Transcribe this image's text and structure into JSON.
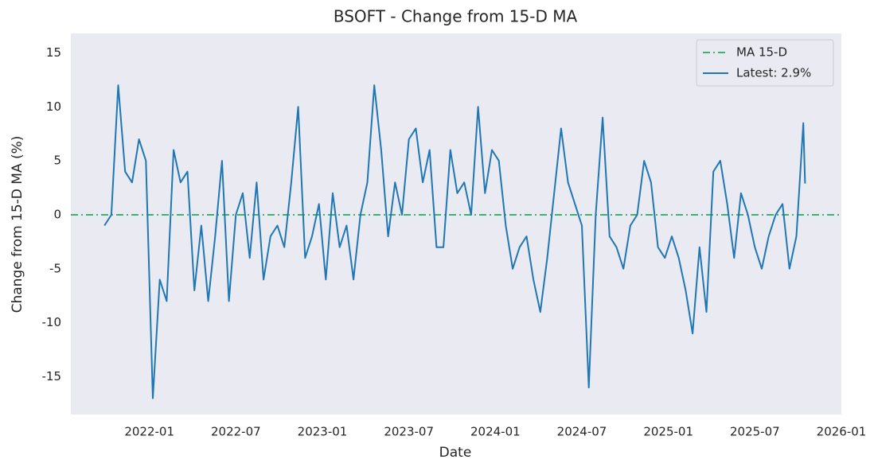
{
  "chart_data": {
    "type": "line",
    "title": "BSOFT - Change from 15-D MA",
    "xlabel": "Date",
    "ylabel": "Change from 15-D MA (%)",
    "x": [
      2021.74,
      2021.78,
      2021.82,
      2021.86,
      2021.9,
      2021.94,
      2021.98,
      2022.02,
      2022.06,
      2022.1,
      2022.14,
      2022.18,
      2022.22,
      2022.26,
      2022.3,
      2022.34,
      2022.38,
      2022.42,
      2022.46,
      2022.5,
      2022.54,
      2022.58,
      2022.62,
      2022.66,
      2022.7,
      2022.74,
      2022.78,
      2022.82,
      2022.86,
      2022.9,
      2022.94,
      2022.98,
      2023.02,
      2023.06,
      2023.1,
      2023.14,
      2023.18,
      2023.22,
      2023.26,
      2023.3,
      2023.34,
      2023.38,
      2023.42,
      2023.46,
      2023.5,
      2023.54,
      2023.58,
      2023.62,
      2023.66,
      2023.7,
      2023.74,
      2023.78,
      2023.82,
      2023.86,
      2023.9,
      2023.94,
      2023.98,
      2024.02,
      2024.06,
      2024.1,
      2024.14,
      2024.18,
      2024.22,
      2024.26,
      2024.3,
      2024.34,
      2024.38,
      2024.42,
      2024.46,
      2024.5,
      2024.54,
      2024.58,
      2024.62,
      2024.66,
      2024.7,
      2024.74,
      2024.78,
      2024.82,
      2024.86,
      2024.9,
      2024.94,
      2024.98,
      2025.02,
      2025.06,
      2025.1,
      2025.14,
      2025.18,
      2025.22,
      2025.26,
      2025.3,
      2025.34,
      2025.38,
      2025.42,
      2025.46,
      2025.5,
      2025.54,
      2025.58,
      2025.62,
      2025.66,
      2025.7,
      2025.74,
      2025.78,
      2025.79
    ],
    "series": [
      {
        "name": "Latest: 2.9%",
        "color": "#1f77b4",
        "values": [
          -1,
          0,
          12,
          4,
          3,
          7,
          5,
          -17,
          -6,
          -8,
          6,
          3,
          4,
          -7,
          -1,
          -8,
          -2,
          5,
          -8,
          0,
          2,
          -4,
          3,
          -6,
          -2,
          -1,
          -3,
          3,
          10,
          -4,
          -2,
          1,
          -6,
          2,
          -3,
          -1,
          -6,
          0,
          3,
          12,
          6,
          -2,
          3,
          0,
          7,
          8,
          3,
          6,
          -3,
          -3,
          6,
          2,
          3,
          0,
          10,
          2,
          6,
          5,
          -1,
          -5,
          -3,
          -2,
          -6,
          -9,
          -4,
          2,
          8,
          3,
          1,
          -1,
          -16,
          0,
          9,
          -2,
          -3,
          -5,
          -1,
          0,
          5,
          3,
          -3,
          -4,
          -2,
          -4,
          -7,
          -11,
          -3,
          -9,
          4,
          5,
          1,
          -4,
          2,
          0,
          -3,
          -5,
          -2,
          0,
          1,
          -5,
          -2,
          8.5,
          2.9
        ]
      }
    ],
    "hline": {
      "name": "MA 15-D",
      "value": 0,
      "color": "#3cb371"
    },
    "xlim": [
      2021.546,
      2026.0
    ],
    "xticks": [
      {
        "value": 2022.0,
        "label": "2022-01"
      },
      {
        "value": 2022.5,
        "label": "2022-07"
      },
      {
        "value": 2023.0,
        "label": "2023-01"
      },
      {
        "value": 2023.5,
        "label": "2023-07"
      },
      {
        "value": 2024.0,
        "label": "2024-01"
      },
      {
        "value": 2024.5,
        "label": "2024-07"
      },
      {
        "value": 2025.0,
        "label": "2025-01"
      },
      {
        "value": 2025.5,
        "label": "2025-07"
      },
      {
        "value": 2026.0,
        "label": "2026-01"
      }
    ],
    "ylim": [
      -18.5,
      16.8
    ],
    "yticks": [
      15,
      10,
      5,
      0,
      -5,
      -10,
      -15
    ],
    "legend": "upper right"
  }
}
